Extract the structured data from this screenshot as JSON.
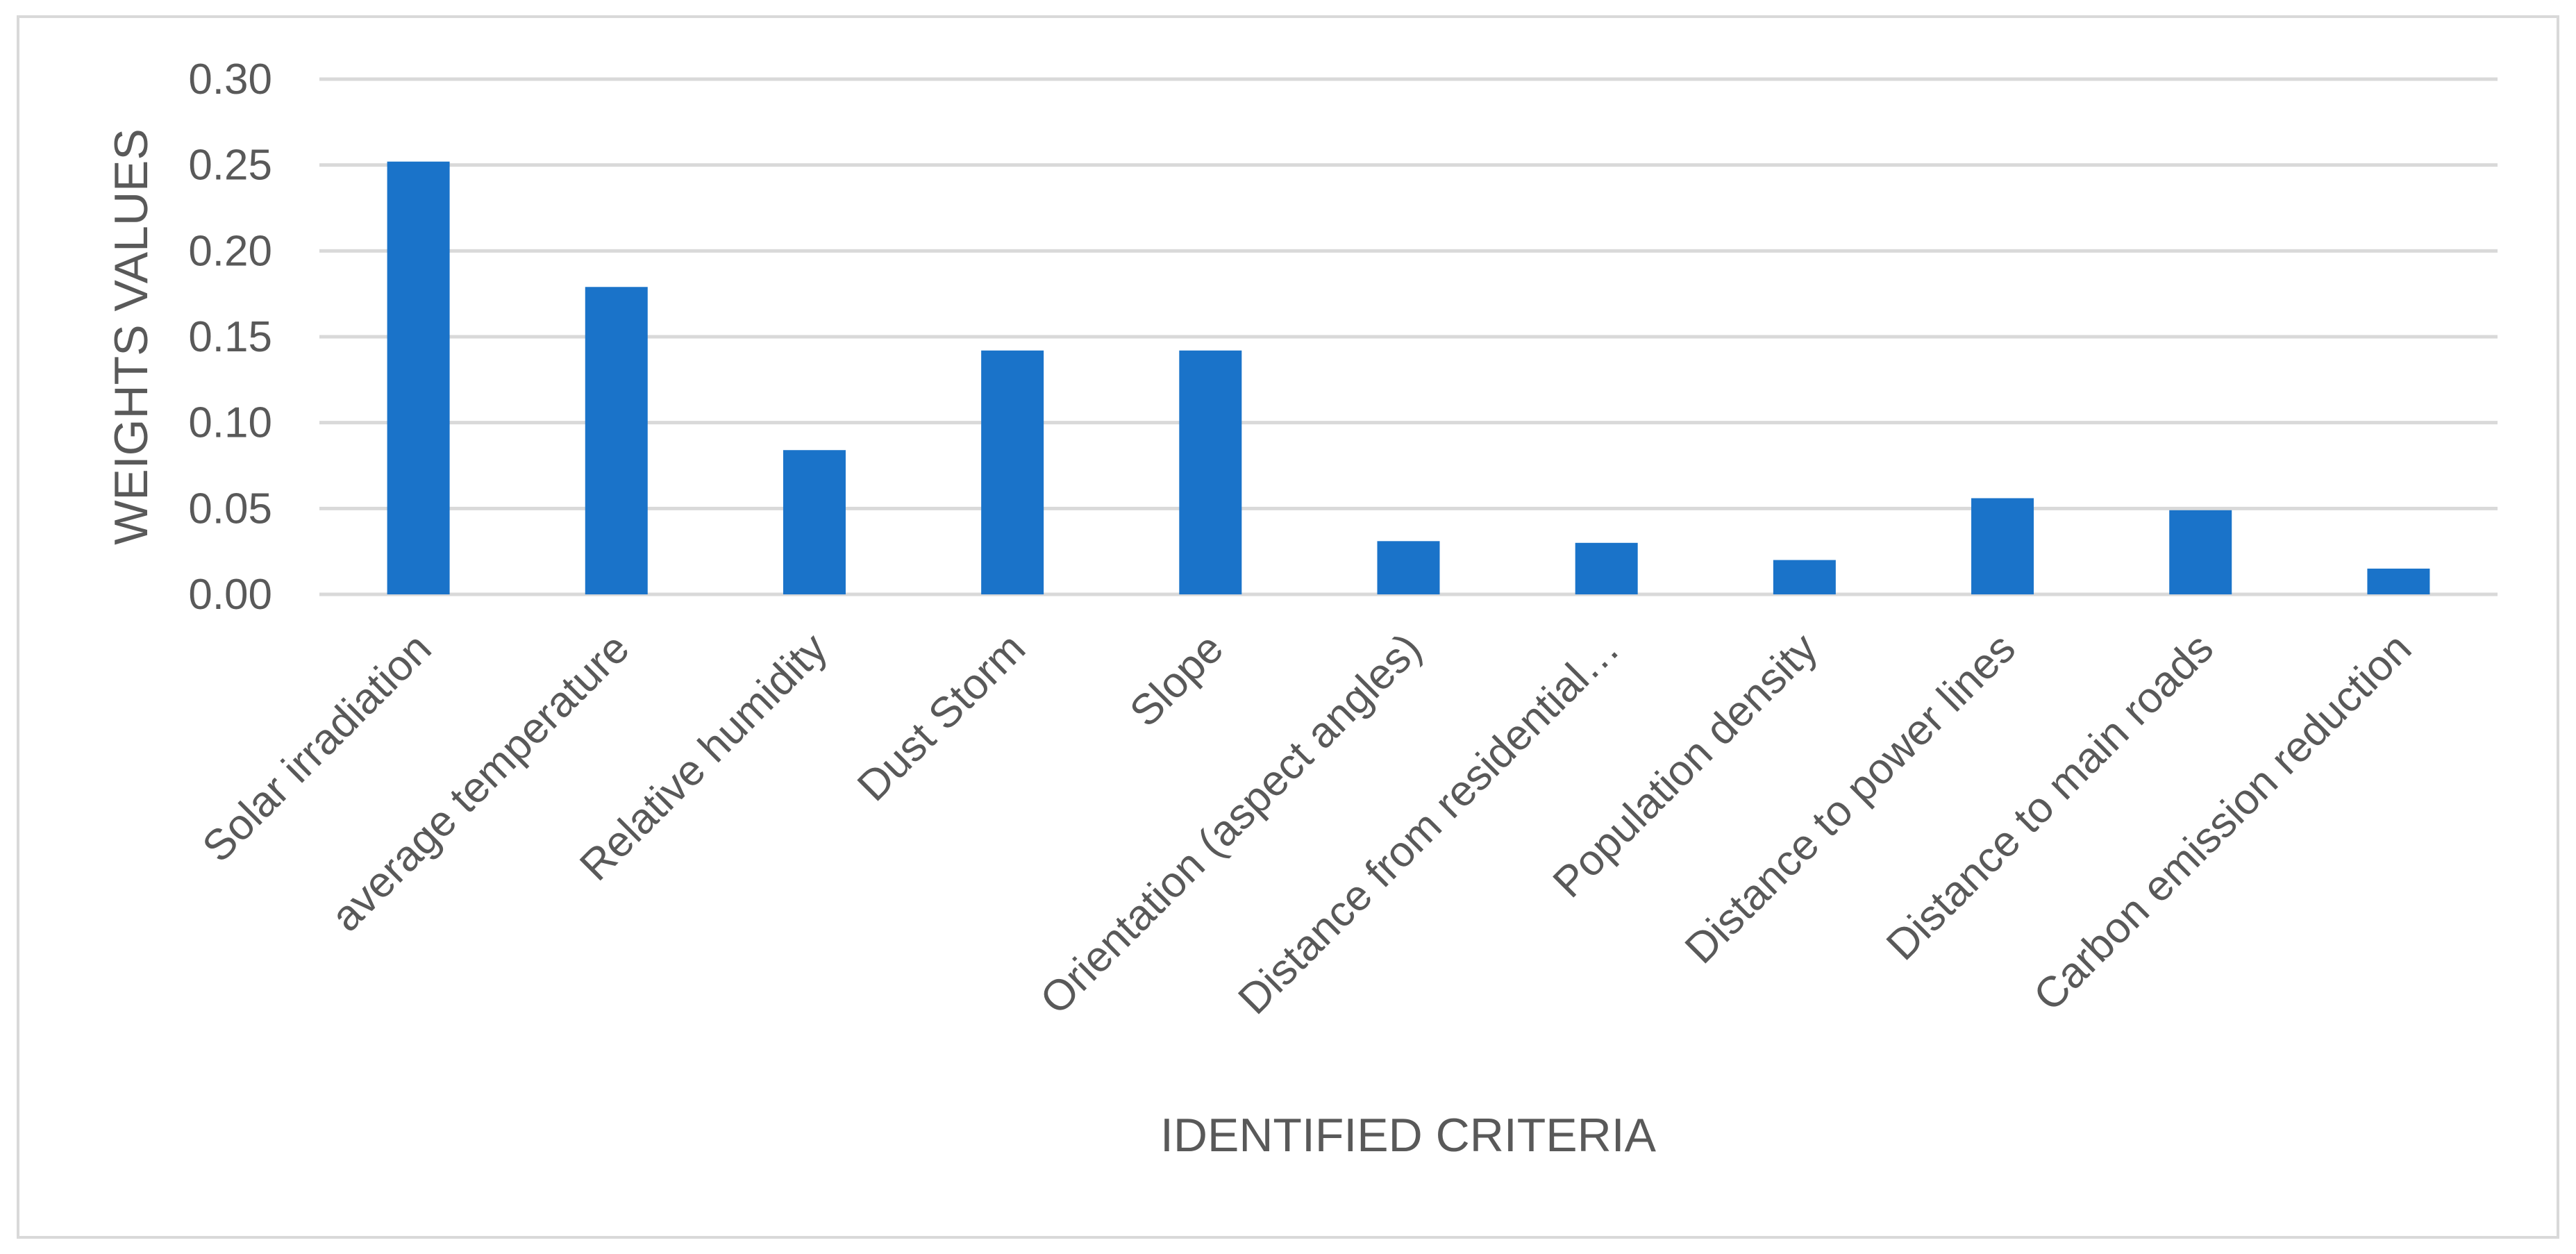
{
  "chart_data": {
    "type": "bar",
    "title": "",
    "xlabel": "IDENTIFIED CRITERIA",
    "ylabel": "WEIGHTS VALUES",
    "ylim": [
      0,
      0.3
    ],
    "yticks": [
      "0.00",
      "0.05",
      "0.10",
      "0.15",
      "0.20",
      "0.25",
      "0.30"
    ],
    "grid": true,
    "legend": "none",
    "bar_color": "#1a73c9",
    "categories": [
      "Solar irradiation",
      "average temperature",
      "Relative humidity",
      "Dust Storm",
      "Slope",
      "Orientation (aspect angles)",
      "Distance from residential…",
      "Population density",
      "Distance to power lines",
      "Distance to main roads",
      "Carbon emission reduction"
    ],
    "values": [
      0.252,
      0.179,
      0.084,
      0.142,
      0.142,
      0.031,
      0.03,
      0.02,
      0.056,
      0.049,
      0.015
    ]
  }
}
